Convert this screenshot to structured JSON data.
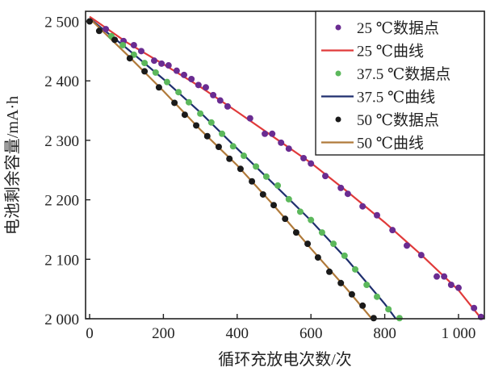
{
  "chart_data": {
    "type": "scatter",
    "xlabel": "循环充放电次数/次",
    "ylabel": "电池剩余容量/mA·h",
    "xlim": [
      0,
      1070
    ],
    "ylim": [
      2000,
      2516
    ],
    "xticks": [
      0,
      200,
      400,
      600,
      800,
      1000
    ],
    "xtick_labels": [
      "0",
      "200",
      "400",
      "600",
      "800",
      "1 000"
    ],
    "yticks": [
      2000,
      2100,
      2200,
      2300,
      2400,
      2500
    ],
    "ytick_labels": [
      "2 000",
      "2 100",
      "2 200",
      "2 300",
      "2 400",
      "2 500"
    ],
    "grid": false,
    "legend_position": "top-right",
    "series": [
      {
        "name": "25 ℃数据点",
        "kind": "points",
        "color": "#6a2c91",
        "x": [
          44,
          92,
          120,
          140,
          175,
          195,
          214,
          236,
          256,
          276,
          295,
          315,
          335,
          354,
          374,
          435,
          475,
          495,
          519,
          540,
          580,
          600,
          639,
          681,
          700,
          740,
          779,
          821,
          860,
          899,
          941,
          961,
          980,
          1000,
          1042,
          1061
        ],
        "y": [
          2487,
          2467,
          2460,
          2450,
          2434,
          2429,
          2426,
          2417,
          2410,
          2403,
          2393,
          2389,
          2376,
          2367,
          2357,
          2337,
          2311,
          2311,
          2296,
          2286,
          2270,
          2261,
          2240,
          2220,
          2210,
          2189,
          2174,
          2149,
          2123,
          2107,
          2071,
          2071,
          2057,
          2052,
          2018,
          2003
        ]
      },
      {
        "name": "25 ℃曲线",
        "kind": "line",
        "color": "#e03a3a",
        "x": [
          0,
          100,
          200,
          300,
          400,
          500,
          600,
          700,
          800,
          900,
          1000,
          1062
        ],
        "y": [
          2508,
          2465,
          2428,
          2390,
          2348,
          2305,
          2262,
          2213,
          2162,
          2107,
          2048,
          2000
        ]
      },
      {
        "name": "37.5 ℃数据点",
        "kind": "points",
        "color": "#5cb85c",
        "x": [
          59,
          90,
          120,
          149,
          179,
          210,
          241,
          269,
          300,
          330,
          359,
          389,
          418,
          451,
          479,
          510,
          540,
          571,
          600,
          630,
          661,
          691,
          720,
          751,
          779,
          810,
          840
        ],
        "y": [
          2475,
          2460,
          2444,
          2430,
          2414,
          2398,
          2381,
          2364,
          2345,
          2330,
          2311,
          2290,
          2274,
          2256,
          2239,
          2224,
          2201,
          2180,
          2166,
          2145,
          2126,
          2106,
          2083,
          2057,
          2037,
          2016,
          2001
        ]
      },
      {
        "name": "37.5 ℃曲线",
        "kind": "line",
        "color": "#1f2f6e",
        "x": [
          0,
          100,
          200,
          300,
          400,
          500,
          600,
          700,
          800,
          830
        ],
        "y": [
          2505,
          2455,
          2403,
          2347,
          2286,
          2226,
          2165,
          2098,
          2025,
          2000
        ]
      },
      {
        "name": "50 ℃数据点",
        "kind": "points",
        "color": "#1a1a1a",
        "x": [
          0,
          26,
          68,
          109,
          149,
          188,
          230,
          258,
          289,
          319,
          350,
          379,
          409,
          440,
          470,
          499,
          530,
          560,
          591,
          619,
          650,
          681,
          711,
          740,
          770
        ],
        "y": [
          2500,
          2484,
          2469,
          2438,
          2416,
          2389,
          2363,
          2343,
          2325,
          2307,
          2289,
          2269,
          2252,
          2231,
          2209,
          2191,
          2168,
          2145,
          2126,
          2103,
          2079,
          2060,
          2041,
          2022,
          2001
        ]
      },
      {
        "name": "50 ℃曲线",
        "kind": "line",
        "color": "#b07a3a",
        "x": [
          0,
          100,
          200,
          300,
          400,
          500,
          600,
          700,
          765
        ],
        "y": [
          2505,
          2445,
          2383,
          2318,
          2258,
          2190,
          2118,
          2048,
          2000
        ]
      }
    ]
  }
}
